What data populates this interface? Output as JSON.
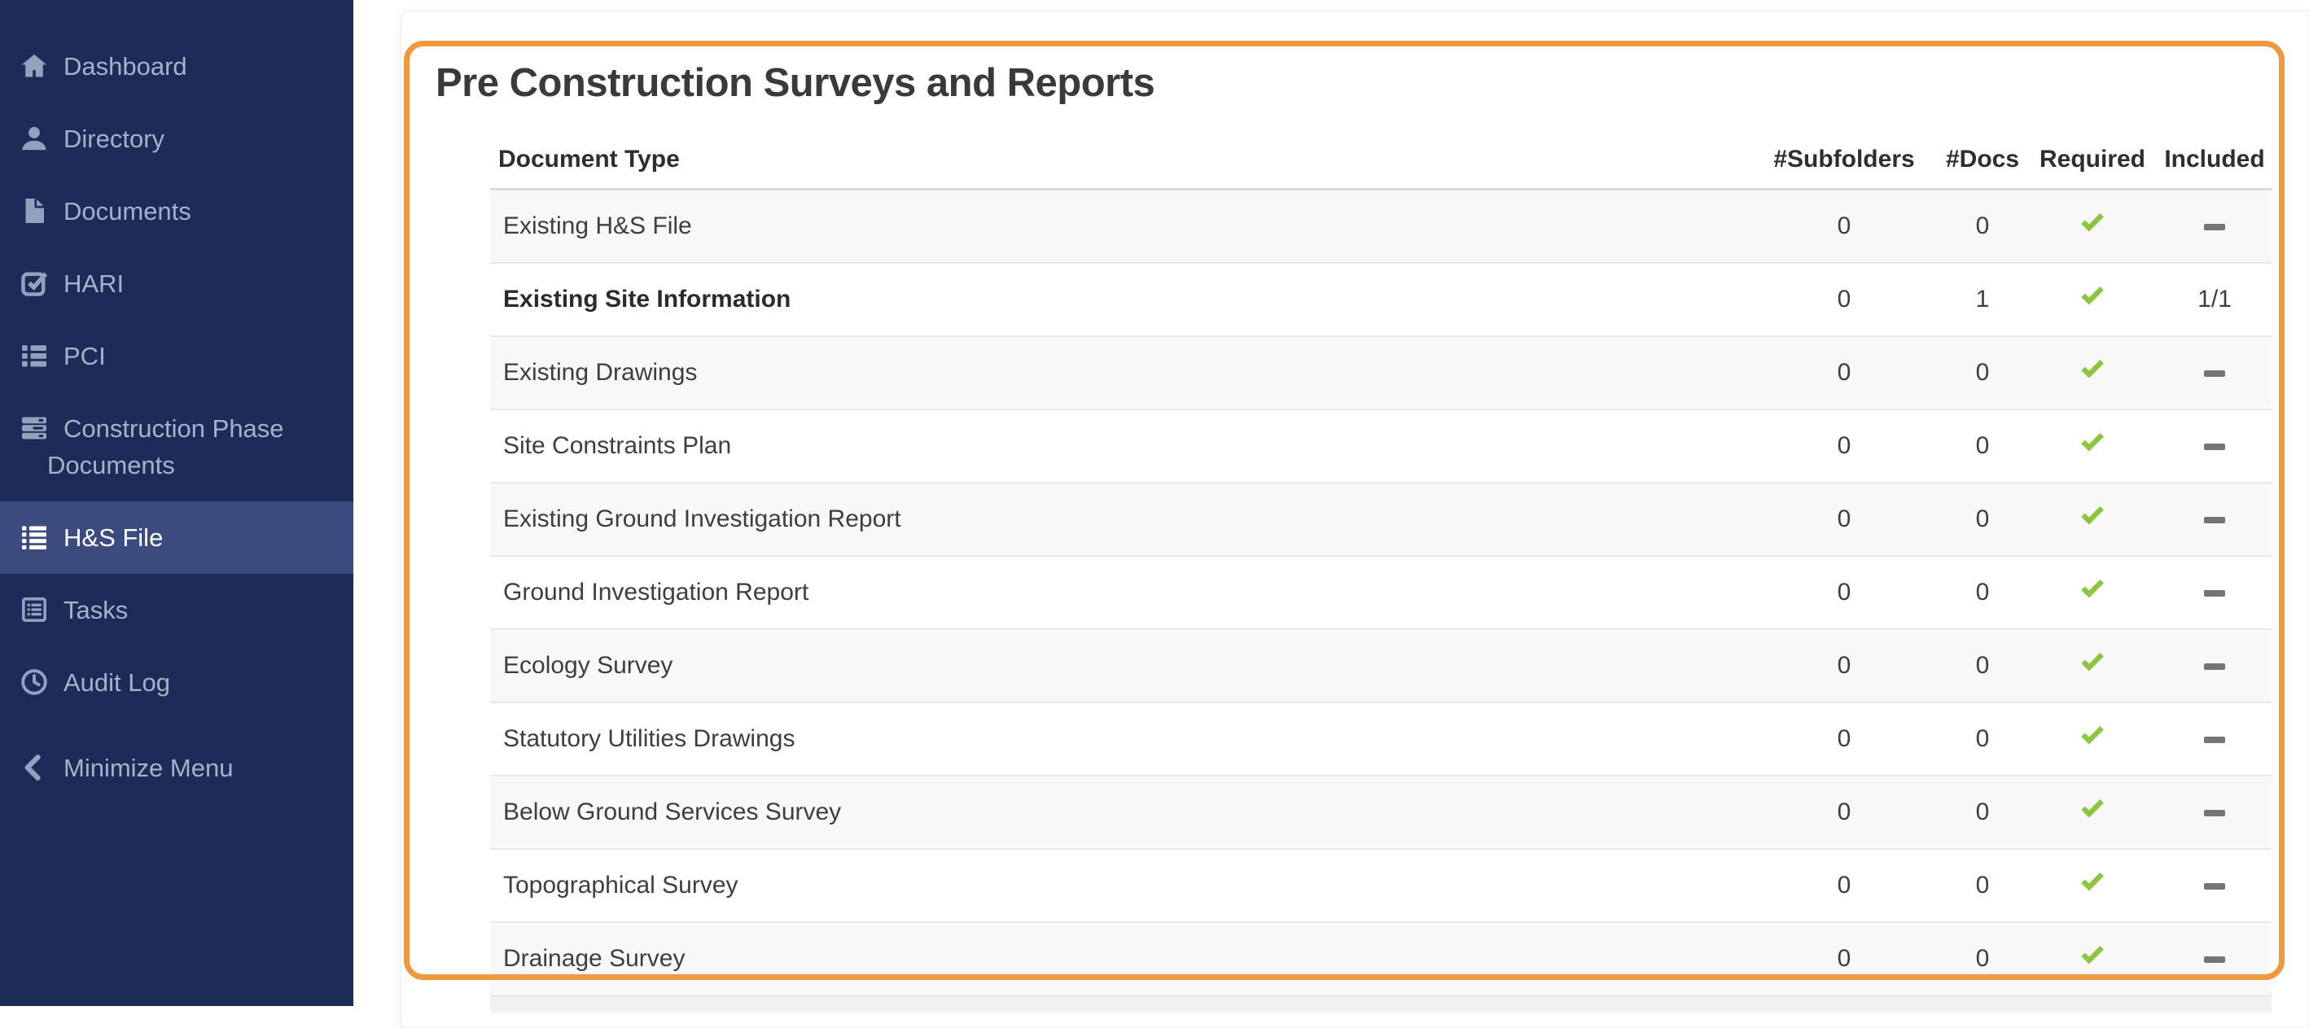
{
  "sidebar": {
    "items": [
      {
        "label": "Dashboard",
        "icon": "home",
        "active": false
      },
      {
        "label": "Directory",
        "icon": "user",
        "active": false
      },
      {
        "label": "Documents",
        "icon": "document",
        "active": false
      },
      {
        "label": "HARI",
        "icon": "check-square",
        "active": false
      },
      {
        "label": "PCI",
        "icon": "list3",
        "active": false
      },
      {
        "label": "Construction Phase Documents",
        "icon": "stack",
        "active": false
      },
      {
        "label": "H&S File",
        "icon": "list4",
        "active": true
      },
      {
        "label": "Tasks",
        "icon": "task-list",
        "active": false
      },
      {
        "label": "Audit Log",
        "icon": "clock",
        "active": false
      }
    ],
    "minimize": {
      "label": "Minimize Menu",
      "icon": "chevron-left"
    }
  },
  "panel": {
    "title": "Pre Construction Surveys and Reports"
  },
  "table": {
    "columns": [
      "Document Type",
      "#Subfolders",
      "#Docs",
      "Required",
      "Included"
    ],
    "rows": [
      {
        "name": "Existing H&S File",
        "bold": false,
        "subfolders": "0",
        "docs": "0",
        "required": "check",
        "included": "dash"
      },
      {
        "name": "Existing Site Information",
        "bold": true,
        "subfolders": "0",
        "docs": "1",
        "required": "check",
        "included": "1/1"
      },
      {
        "name": "Existing Drawings",
        "bold": false,
        "subfolders": "0",
        "docs": "0",
        "required": "check",
        "included": "dash"
      },
      {
        "name": "Site Constraints Plan",
        "bold": false,
        "subfolders": "0",
        "docs": "0",
        "required": "check",
        "included": "dash"
      },
      {
        "name": "Existing Ground Investigation Report",
        "bold": false,
        "subfolders": "0",
        "docs": "0",
        "required": "check",
        "included": "dash"
      },
      {
        "name": "Ground Investigation Report",
        "bold": false,
        "subfolders": "0",
        "docs": "0",
        "required": "check",
        "included": "dash"
      },
      {
        "name": "Ecology Survey",
        "bold": false,
        "subfolders": "0",
        "docs": "0",
        "required": "check",
        "included": "dash"
      },
      {
        "name": "Statutory Utilities Drawings",
        "bold": false,
        "subfolders": "0",
        "docs": "0",
        "required": "check",
        "included": "dash"
      },
      {
        "name": "Below Ground Services Survey",
        "bold": false,
        "subfolders": "0",
        "docs": "0",
        "required": "check",
        "included": "dash"
      },
      {
        "name": "Topographical Survey",
        "bold": false,
        "subfolders": "0",
        "docs": "0",
        "required": "check",
        "included": "dash"
      },
      {
        "name": "Drainage Survey",
        "bold": false,
        "subfolders": "0",
        "docs": "0",
        "required": "check",
        "included": "dash"
      }
    ]
  },
  "colors": {
    "sidebar_bg": "#1C2B57",
    "sidebar_active_bg": "#3C4B7D",
    "highlight_orange": "#EF983D",
    "check_green": "#8CC63F",
    "dash_gray": "#757575",
    "stripe_gray": "#F8F8F8"
  }
}
